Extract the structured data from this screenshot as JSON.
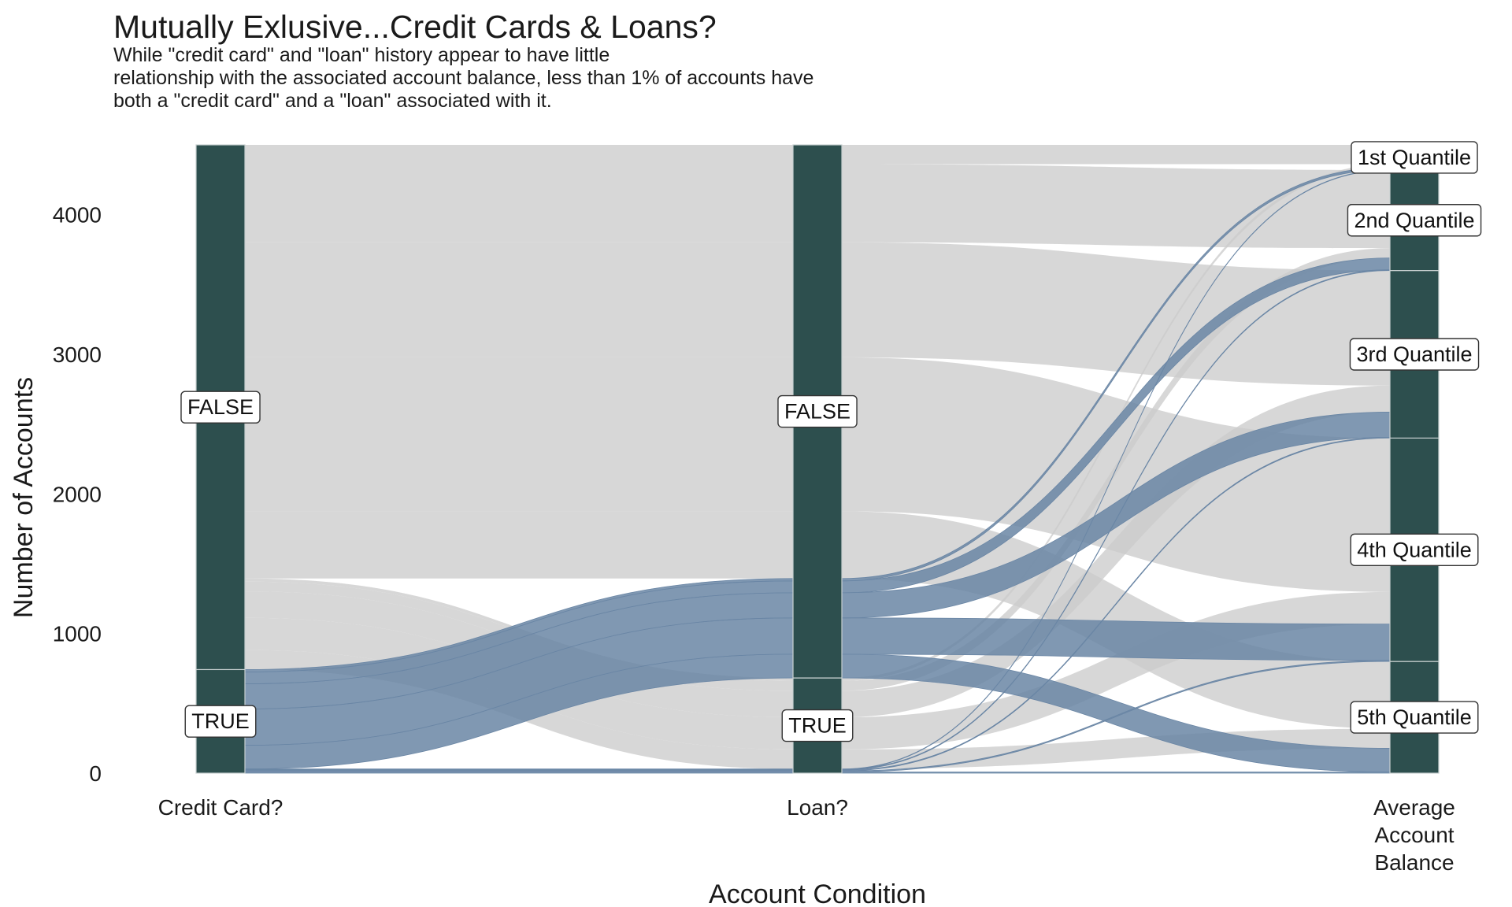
{
  "chart_data": {
    "type": "alluvial",
    "title": "Mutually Exlusive...Credit Cards & Loans?",
    "subtitle": [
      "While \"credit card\" and \"loan\" history appear to have little",
      "relationship with the associated account balance, less than 1% of accounts have",
      "both a \"credit card\" and a \"loan\" associated with it."
    ],
    "xlabel": "Account Condition",
    "ylabel": "Number of Accounts",
    "ylim": [
      0,
      4500
    ],
    "yticks": [
      0,
      1000,
      2000,
      3000,
      4000
    ],
    "axes": [
      {
        "label": [
          "Credit Card?"
        ],
        "strata": [
          {
            "name": "TRUE",
            "value": 742
          },
          {
            "name": "FALSE",
            "value": 3758
          }
        ]
      },
      {
        "label": [
          "Loan?"
        ],
        "strata": [
          {
            "name": "TRUE",
            "value": 682
          },
          {
            "name": "FALSE",
            "value": 3818
          }
        ]
      },
      {
        "label": [
          "Average",
          "Account",
          "Balance"
        ],
        "strata": [
          {
            "name": "5th Quantile",
            "value": 800
          },
          {
            "name": "4th Quantile",
            "value": 1600
          },
          {
            "name": "3rd Quantile",
            "value": 1200
          },
          {
            "name": "2nd Quantile",
            "value": 720
          },
          {
            "name": "1st Quantile",
            "value": 180
          }
        ]
      }
    ],
    "flows": [
      {
        "credit_card": "TRUE",
        "loan": "TRUE",
        "balance": "5th Quantile",
        "value": 8
      },
      {
        "credit_card": "TRUE",
        "loan": "TRUE",
        "balance": "4th Quantile",
        "value": 8
      },
      {
        "credit_card": "TRUE",
        "loan": "TRUE",
        "balance": "3rd Quantile",
        "value": 6
      },
      {
        "credit_card": "TRUE",
        "loan": "TRUE",
        "balance": "2nd Quantile",
        "value": 5
      },
      {
        "credit_card": "TRUE",
        "loan": "TRUE",
        "balance": "1st Quantile",
        "value": 3
      },
      {
        "credit_card": "TRUE",
        "loan": "FALSE",
        "balance": "5th Quantile",
        "value": 170
      },
      {
        "credit_card": "TRUE",
        "loan": "FALSE",
        "balance": "4th Quantile",
        "value": 260
      },
      {
        "credit_card": "TRUE",
        "loan": "FALSE",
        "balance": "3rd Quantile",
        "value": 180
      },
      {
        "credit_card": "TRUE",
        "loan": "FALSE",
        "balance": "2nd Quantile",
        "value": 85
      },
      {
        "credit_card": "TRUE",
        "loan": "FALSE",
        "balance": "1st Quantile",
        "value": 17
      },
      {
        "credit_card": "FALSE",
        "loan": "TRUE",
        "balance": "5th Quantile",
        "value": 140
      },
      {
        "credit_card": "FALSE",
        "loan": "TRUE",
        "balance": "4th Quantile",
        "value": 230
      },
      {
        "credit_card": "FALSE",
        "loan": "TRUE",
        "balance": "3rd Quantile",
        "value": 190
      },
      {
        "credit_card": "FALSE",
        "loan": "TRUE",
        "balance": "2nd Quantile",
        "value": 70
      },
      {
        "credit_card": "FALSE",
        "loan": "TRUE",
        "balance": "1st Quantile",
        "value": 22
      },
      {
        "credit_card": "FALSE",
        "loan": "FALSE",
        "balance": "5th Quantile",
        "value": 482
      },
      {
        "credit_card": "FALSE",
        "loan": "FALSE",
        "balance": "4th Quantile",
        "value": 1102
      },
      {
        "credit_card": "FALSE",
        "loan": "FALSE",
        "balance": "3rd Quantile",
        "value": 824
      },
      {
        "credit_card": "FALSE",
        "loan": "FALSE",
        "balance": "2nd Quantile",
        "value": 560
      },
      {
        "credit_card": "FALSE",
        "loan": "FALSE",
        "balance": "1st Quantile",
        "value": 138
      }
    ],
    "highlight": "credit_card = TRUE",
    "colors": {
      "stratum": "#2d4f4e",
      "flow_highlight": "#6a86a5",
      "flow_other": "#cccccc",
      "label_box_border": "#333333"
    },
    "grid": false,
    "legend": "none"
  }
}
